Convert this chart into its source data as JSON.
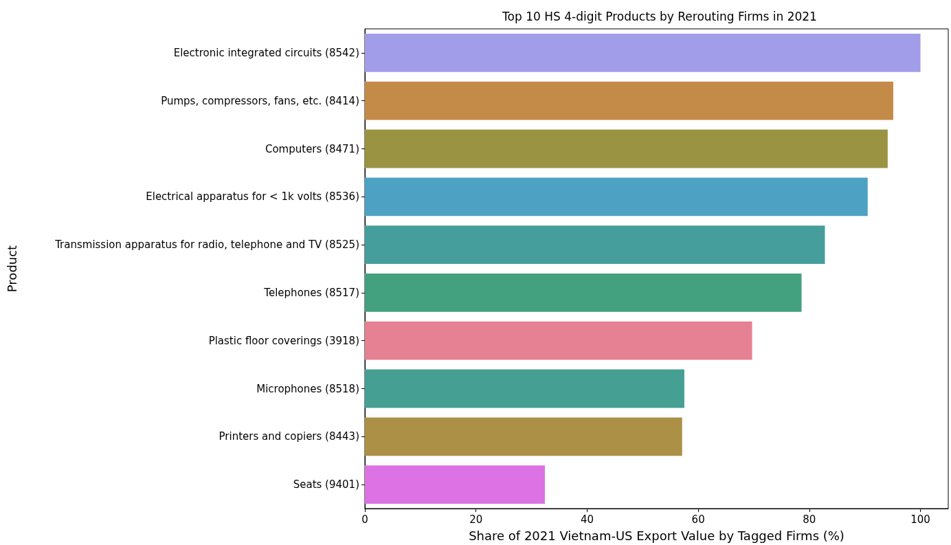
{
  "chart_data": {
    "type": "bar",
    "orientation": "horizontal",
    "title": "Top 10 HS 4-digit Products by Rerouting Firms in 2021",
    "xlabel": "Share of 2021 Vietnam-US Export Value by Tagged Firms (%)",
    "ylabel": "Product",
    "categories": [
      "Electronic integrated circuits (8542)",
      "Pumps, compressors, fans, etc. (8414)",
      "Computers (8471)",
      "Electrical apparatus for < 1k volts (8536)",
      "Transmission apparatus for radio, telephone and TV (8525)",
      "Telephones (8517)",
      "Plastic floor coverings (3918)",
      "Microphones (8518)",
      "Printers and copiers (8443)",
      "Seats (9401)"
    ],
    "values": [
      100,
      95.1,
      94.1,
      90.5,
      82.8,
      78.6,
      69.7,
      57.5,
      57.1,
      32.4
    ],
    "colors": [
      "#a29de8",
      "#c48a48",
      "#9a9442",
      "#4da2c4",
      "#469e9c",
      "#44a180",
      "#e58193",
      "#45a093",
      "#ac9045",
      "#dc72e3"
    ],
    "xlim": [
      0,
      105
    ],
    "xticks": [
      0,
      20,
      40,
      60,
      80,
      100
    ],
    "grid": false
  }
}
